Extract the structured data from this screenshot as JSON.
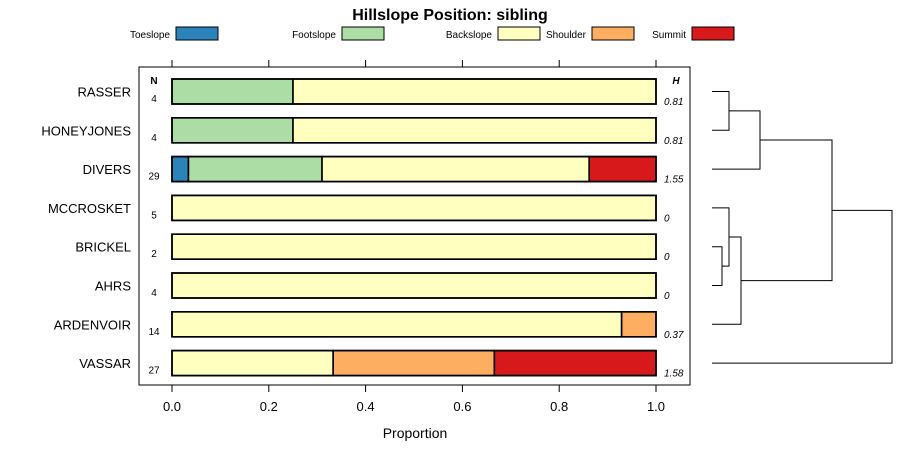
{
  "chart_data": {
    "type": "bar",
    "stacked": true,
    "orientation": "horizontal",
    "title": "Hillslope Position: sibling",
    "xlabel": "Proportion",
    "xlim": [
      0,
      1
    ],
    "ticks": [
      "0.0",
      "0.2",
      "0.4",
      "0.6",
      "0.8",
      "1.0"
    ],
    "n_header": "N",
    "h_header": "H",
    "legend_position": "top",
    "series": [
      {
        "name": "Toeslope",
        "color": "#2b83ba"
      },
      {
        "name": "Footslope",
        "color": "#abdda4"
      },
      {
        "name": "Backslope",
        "color": "#ffffbf"
      },
      {
        "name": "Shoulder",
        "color": "#fdae61"
      },
      {
        "name": "Summit",
        "color": "#d7191c"
      }
    ],
    "rows": [
      {
        "label": "RASSER",
        "n": "4",
        "h": "0.81",
        "values": [
          0,
          0.25,
          0.75,
          0,
          0
        ]
      },
      {
        "label": "HONEYJONES",
        "n": "4",
        "h": "0.81",
        "values": [
          0,
          0.25,
          0.75,
          0,
          0
        ]
      },
      {
        "label": "DIVERS",
        "n": "29",
        "h": "1.55",
        "values": [
          0.034,
          0.276,
          0.552,
          0,
          0.138
        ]
      },
      {
        "label": "MCCROSKET",
        "n": "5",
        "h": "0",
        "values": [
          0,
          0,
          1,
          0,
          0
        ]
      },
      {
        "label": "BRICKEL",
        "n": "2",
        "h": "0",
        "values": [
          0,
          0,
          1,
          0,
          0
        ]
      },
      {
        "label": "AHRS",
        "n": "4",
        "h": "0",
        "values": [
          0,
          0,
          1,
          0,
          0
        ]
      },
      {
        "label": "ARDENVOIR",
        "n": "14",
        "h": "0.37",
        "values": [
          0,
          0,
          0.929,
          0.071,
          0
        ]
      },
      {
        "label": "VASSAR",
        "n": "27",
        "h": "1.58",
        "values": [
          0,
          0,
          0.333,
          0.333,
          0.334
        ]
      }
    ]
  }
}
